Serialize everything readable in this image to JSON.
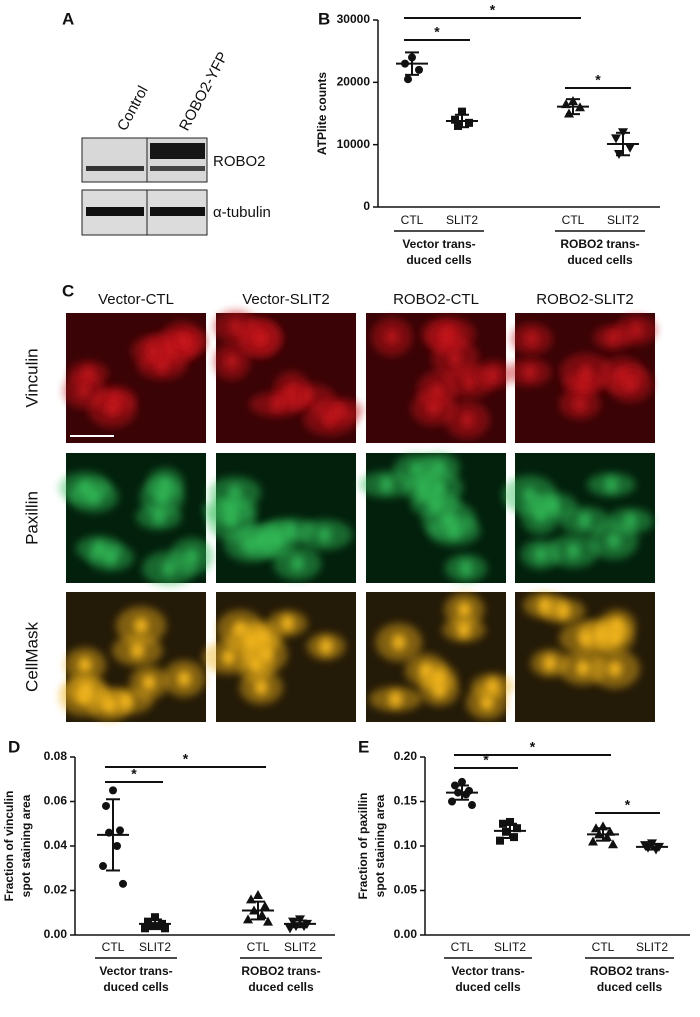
{
  "panel_a": {
    "letter": "A",
    "columns": [
      "Control",
      "ROBO2-YFP"
    ],
    "rows": [
      "ROBO2",
      "α-tubulin"
    ]
  },
  "panel_c": {
    "letter": "C",
    "columns": [
      "Vector-CTL",
      "Vector-SLIT2",
      "ROBO2-CTL",
      "ROBO2-SLIT2"
    ],
    "rows": [
      "Vinculin",
      "Paxillin",
      "CellMask"
    ]
  },
  "chart_data": [
    {
      "type": "dotplot",
      "panel": "B",
      "ylabel": "ATPlite counts",
      "categories": [
        "CTL",
        "SLIT2",
        "CTL",
        "SLIT2"
      ],
      "group_labels": [
        [
          "Vector trans-",
          "duced cells"
        ],
        [
          "ROBO2 trans-",
          "duced cells"
        ]
      ],
      "points": [
        [
          24000,
          23000,
          22000,
          20500
        ],
        [
          15300,
          14000,
          13500,
          13000
        ],
        [
          17000,
          16500,
          16000,
          15000
        ],
        [
          12000,
          11000,
          9500,
          8500
        ]
      ],
      "means": [
        23000,
        13800,
        16100,
        10100
      ],
      "sds": [
        1800,
        1000,
        1200,
        1800
      ],
      "ylim": [
        0,
        30000
      ],
      "yticks": [
        0,
        10000,
        20000,
        30000
      ],
      "brackets": [
        {
          "text": "*",
          "from": 0,
          "to": 1
        },
        {
          "text": "*",
          "from": 0,
          "to": 2
        },
        {
          "text": "*",
          "from": 2,
          "to": 3
        }
      ]
    },
    {
      "type": "dotplot",
      "panel": "D",
      "ylabel": [
        "Fraction of vinculin",
        "spot staining area"
      ],
      "categories": [
        "CTL",
        "SLIT2",
        "CTL",
        "SLIT2"
      ],
      "group_labels": [
        [
          "Vector trans-",
          "duced cells"
        ],
        [
          "ROBO2 trans-",
          "duced cells"
        ]
      ],
      "points": [
        [
          0.065,
          0.058,
          0.047,
          0.046,
          0.04,
          0.031,
          0.023
        ],
        [
          0.008,
          0.006,
          0.005,
          0.004,
          0.004,
          0.003,
          0.003
        ],
        [
          0.018,
          0.016,
          0.013,
          0.011,
          0.009,
          0.007,
          0.006
        ],
        [
          0.007,
          0.006,
          0.005,
          0.004,
          0.004,
          0.003
        ]
      ],
      "means": [
        0.045,
        0.005,
        0.011,
        0.005
      ],
      "sds": [
        0.016,
        0.002,
        0.004,
        0.0015
      ],
      "ylim": [
        0,
        0.08
      ],
      "yticks": [
        {
          "value": 0,
          "label": "0.00"
        },
        0.02,
        0.04,
        0.06,
        0.08
      ],
      "brackets": [
        {
          "text": "*",
          "from": 0,
          "to": 1
        },
        {
          "text": "*",
          "from": 0,
          "to": 2
        }
      ]
    },
    {
      "type": "dotplot",
      "panel": "E",
      "ylabel": [
        "Fraction of paxillin",
        "spot staining area"
      ],
      "categories": [
        "CTL",
        "SLIT2",
        "CTL",
        "SLIT2"
      ],
      "group_labels": [
        [
          "Vector trans-",
          "duced cells"
        ],
        [
          "ROBO2 trans-",
          "duced cells"
        ]
      ],
      "points": [
        [
          0.172,
          0.168,
          0.162,
          0.16,
          0.158,
          0.15,
          0.146
        ],
        [
          0.127,
          0.125,
          0.12,
          0.116,
          0.11,
          0.106
        ],
        [
          0.122,
          0.12,
          0.116,
          0.113,
          0.11,
          0.105,
          0.102
        ],
        [
          0.103,
          0.101,
          0.099,
          0.098,
          0.096
        ]
      ],
      "means": [
        0.16,
        0.117,
        0.113,
        0.099
      ],
      "sds": [
        0.008,
        0.008,
        0.007,
        0.003
      ],
      "ylim": [
        0,
        0.2
      ],
      "yticks": [
        {
          "value": 0,
          "label": "0.00"
        },
        0.05,
        {
          "value": 0.1,
          "label": "0.10"
        },
        0.15,
        {
          "value": 0.2,
          "label": "0.20"
        }
      ],
      "brackets": [
        {
          "text": "*",
          "from": 0,
          "to": 1
        },
        {
          "text": "*",
          "from": 0,
          "to": 2
        },
        {
          "text": "*",
          "from": 2,
          "to": 3
        }
      ]
    }
  ]
}
